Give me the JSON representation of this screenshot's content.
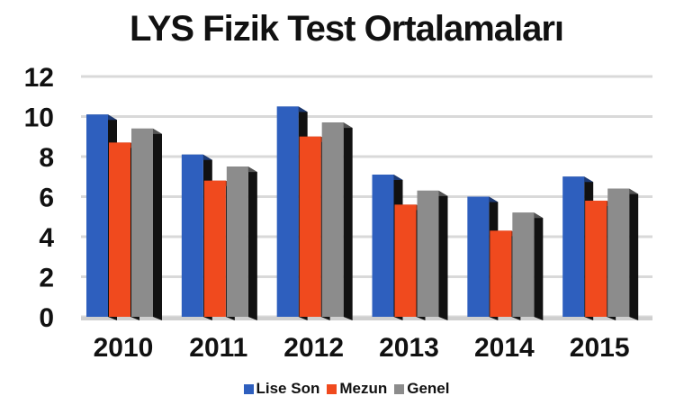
{
  "chart_data": {
    "type": "bar",
    "title": "LYS Fizik Test Ortalamaları",
    "xlabel": "",
    "ylabel": "",
    "categories": [
      "2010",
      "2011",
      "2012",
      "2013",
      "2014",
      "2015"
    ],
    "series": [
      {
        "name": "Lise Son",
        "color": "#2e5fbe",
        "values": [
          10.1,
          8.1,
          10.5,
          7.1,
          6.0,
          7.0
        ]
      },
      {
        "name": "Mezun",
        "color": "#f04a1e",
        "values": [
          8.7,
          6.8,
          9.0,
          5.6,
          4.3,
          5.8
        ]
      },
      {
        "name": "Genel",
        "color": "#8c8c8c",
        "values": [
          9.4,
          7.5,
          9.7,
          6.3,
          5.2,
          6.4
        ]
      }
    ],
    "ylim": [
      0,
      12
    ],
    "yticks": [
      "0",
      "2",
      "4",
      "6",
      "8",
      "10",
      "12"
    ],
    "grid": true,
    "legend": "bottom"
  }
}
